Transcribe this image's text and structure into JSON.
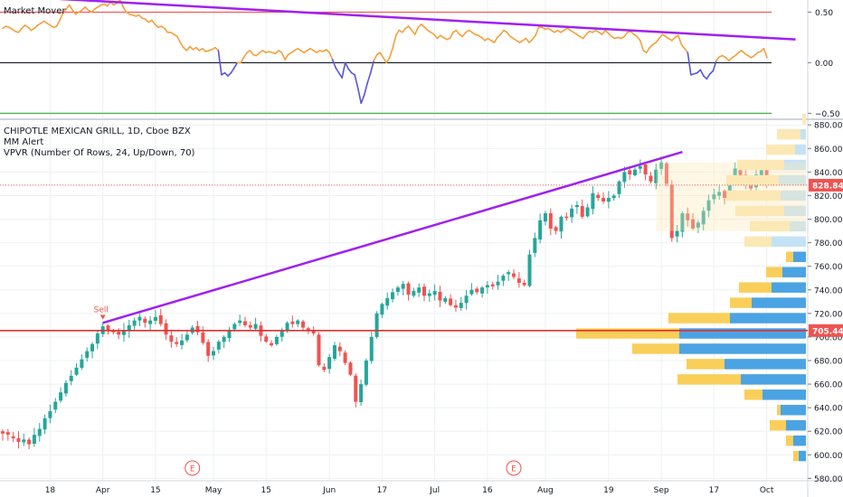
{
  "chart_data": [
    {
      "type": "line",
      "title": "Market Mover",
      "ylim": [
        -0.55,
        0.62
      ],
      "yticks": [
        0.5,
        0.0,
        -0.5
      ],
      "ytick_labels": [
        "0.50",
        "0.00",
        "−0.50"
      ],
      "reference_lines": [
        {
          "value": 0.5,
          "color": "#ef5350"
        },
        {
          "value": 0.0,
          "color": "#131722"
        },
        {
          "value": -0.5,
          "color": "#4caf50"
        }
      ],
      "series": [
        {
          "x_index_start": 0,
          "values": [
            0.34,
            0.36,
            0.35,
            0.33,
            0.31,
            0.3,
            0.34,
            0.37,
            0.35,
            0.32,
            0.34,
            0.37,
            0.39,
            0.41,
            0.39,
            0.37,
            0.35,
            0.36,
            0.42,
            0.49,
            0.53,
            0.57,
            0.52,
            0.48,
            0.5,
            0.52,
            0.55,
            0.52,
            0.5,
            0.53,
            0.55,
            0.57,
            0.58,
            0.56,
            0.6,
            0.57,
            0.59,
            0.62,
            0.55,
            0.5,
            0.48,
            0.47,
            0.46,
            0.47,
            0.44,
            0.43,
            0.4,
            0.42,
            0.38,
            0.35,
            0.36,
            0.34,
            0.3,
            0.3,
            0.28,
            0.26,
            0.2,
            0.15,
            0.12,
            0.16,
            0.13,
            0.15,
            0.12,
            0.14,
            0.11,
            0.12,
            0.13,
            0.15,
            0.12,
            -0.12,
            -0.1,
            -0.13,
            -0.1,
            -0.05,
            0.0,
            0.0,
            0.05,
            0.1,
            0.12,
            0.08,
            0.07,
            0.1,
            0.12,
            0.1,
            0.11,
            0.1,
            0.09,
            0.12,
            0.1,
            0.03,
            0.08,
            0.1,
            0.12,
            0.14,
            0.12,
            0.1,
            0.12,
            0.14,
            0.12,
            0.1,
            0.12,
            0.11,
            0.13,
            0.1,
            0.03,
            -0.05,
            -0.1,
            -0.15,
            0.0,
            -0.06,
            -0.1,
            -0.12,
            -0.25,
            -0.4,
            -0.32,
            -0.2,
            -0.1,
            0.02,
            0.08,
            0.1,
            0.05,
            0.0,
            0.05,
            0.15,
            0.27,
            0.32,
            0.3,
            0.34,
            0.36,
            0.32,
            0.28,
            0.35,
            0.38,
            0.35,
            0.32,
            0.3,
            0.28,
            0.24,
            0.27,
            0.25,
            0.23,
            0.24,
            0.3,
            0.32,
            0.28,
            0.26,
            0.3,
            0.32,
            0.3,
            0.28,
            0.27,
            0.25,
            0.22,
            0.24,
            0.22,
            0.2,
            0.25,
            0.28,
            0.32,
            0.3,
            0.26,
            0.24,
            0.22,
            0.2,
            0.22,
            0.24,
            0.2,
            0.23,
            0.27,
            0.35,
            0.35,
            0.33,
            0.34,
            0.32,
            0.3,
            0.32,
            0.3,
            0.32,
            0.34,
            0.32,
            0.3,
            0.28,
            0.26,
            0.24,
            0.28,
            0.31,
            0.3,
            0.32,
            0.3,
            0.28,
            0.32,
            0.29,
            0.26,
            0.24,
            0.25,
            0.24,
            0.26,
            0.3,
            0.31,
            0.28,
            0.26,
            0.22,
            0.12,
            0.1,
            0.15,
            0.18,
            0.2,
            0.24,
            0.28,
            0.26,
            0.24,
            0.22,
            0.25,
            0.27,
            0.18,
            0.14,
            0.1,
            -0.12,
            -0.11,
            -0.1,
            -0.07,
            -0.13,
            -0.16,
            -0.11,
            -0.08,
            0.02,
            0.06,
            0.07,
            0.05,
            0.02,
            0.05,
            0.07,
            0.1,
            0.12,
            0.09,
            0.07,
            0.05,
            0.07,
            0.1,
            0.11,
            0.14,
            0.05
          ],
          "negative_color": "#5a55d8",
          "positive_color": "#f4a13d"
        }
      ],
      "annotations": [
        {
          "type": "trendline",
          "from": [
            18,
            0.63
          ],
          "to": [
            250,
            0.23
          ],
          "color": "#a020f0"
        }
      ]
    },
    {
      "type": "candlestick",
      "title": "CHIPOTLE MEXICAN GRILL, 1D, Cboe BZX",
      "legend_lines": [
        "CHIPOTLE MEXICAN GRILL, 1D, Cboe BZX",
        "MM Alert",
        "VPVR (Number Of Rows, 24, Up/Down, 70)"
      ],
      "ylim": [
        578,
        884
      ],
      "yticks": [
        580,
        600,
        620,
        640,
        660,
        680,
        700,
        720,
        740,
        760,
        780,
        800,
        820,
        840,
        860,
        880
      ],
      "ytick_labels": [
        "580.00",
        "600.00",
        "620.00",
        "640.00",
        "660.00",
        "680.00",
        "700.00",
        "720.00",
        "740.00",
        "760.00",
        "780.00",
        "800.00",
        "820.00",
        "840.00",
        "860.00",
        "880.00"
      ],
      "xticks": [
        {
          "label": "18",
          "index": 9
        },
        {
          "label": "Apr",
          "index": 19
        },
        {
          "label": "15",
          "index": 29
        },
        {
          "label": "May",
          "index": 40
        },
        {
          "label": "15",
          "index": 50
        },
        {
          "label": "Jun",
          "index": 62
        },
        {
          "label": "17",
          "index": 72
        },
        {
          "label": "Jul",
          "index": 82
        },
        {
          "label": "16",
          "index": 92
        },
        {
          "label": "Aug",
          "index": 103
        },
        {
          "label": "19",
          "index": 115
        },
        {
          "label": "Sep",
          "index": 125
        },
        {
          "label": "17",
          "index": 135
        },
        {
          "label": "Oct",
          "index": 145
        }
      ],
      "price_labels": [
        {
          "value": 828.84,
          "text": "828.84",
          "color": "#ef5350"
        },
        {
          "value": 705.44,
          "text": "705.44",
          "color": "#ef5350"
        }
      ],
      "horizontal_lines": [
        {
          "value": 705.44,
          "color": "#e03030",
          "style": "solid"
        },
        {
          "value": 828.84,
          "color": "#ef5350",
          "style": "dotted"
        }
      ],
      "markers": [
        {
          "type": "sell",
          "text": "Sell",
          "index": 19,
          "price": 718
        },
        {
          "type": "earnings",
          "text": "E",
          "index": 36
        },
        {
          "type": "earnings",
          "text": "E",
          "index": 97
        }
      ],
      "trendline": {
        "from": [
          19,
          712
        ],
        "to": [
          129,
          857
        ],
        "color": "#a020f0"
      },
      "closes": [
        618,
        617,
        614,
        611,
        613,
        609,
        617,
        622,
        631,
        637,
        645,
        653,
        661,
        667,
        674,
        681,
        688,
        694,
        703,
        709,
        705,
        704,
        702,
        706,
        710,
        714,
        717,
        712,
        714,
        717,
        711,
        702,
        696,
        694,
        697,
        702,
        708,
        704,
        695,
        684,
        688,
        696,
        700,
        706,
        711,
        714,
        710,
        708,
        711,
        701,
        696,
        693,
        700,
        706,
        712,
        711,
        714,
        708,
        706,
        703,
        676,
        672,
        683,
        693,
        688,
        678,
        668,
        645,
        660,
        680,
        700,
        720,
        728,
        733,
        738,
        742,
        745,
        736,
        739,
        742,
        735,
        737,
        739,
        731,
        733,
        727,
        725,
        729,
        735,
        740,
        738,
        742,
        744,
        743,
        747,
        752,
        755,
        751,
        746,
        744,
        770,
        784,
        799,
        805,
        792,
        790,
        802,
        801,
        809,
        812,
        802,
        810,
        822,
        818,
        815,
        818,
        820,
        832,
        840,
        838,
        842,
        845,
        838,
        832,
        842,
        848,
        830,
        784,
        790,
        805,
        799,
        792,
        797,
        807,
        816,
        821,
        823,
        818,
        832,
        843,
        837,
        829,
        826,
        838,
        845,
        828.84
      ],
      "volume_profile": [
        {
          "price": 885,
          "up": 4,
          "down": 0
        },
        {
          "price": 872,
          "up": 26,
          "down": 6
        },
        {
          "price": 859,
          "up": 32,
          "down": 12
        },
        {
          "price": 846,
          "up": 52,
          "down": 24
        },
        {
          "price": 833,
          "up": 58,
          "down": 30
        },
        {
          "price": 820,
          "up": 60,
          "down": 28
        },
        {
          "price": 807,
          "up": 54,
          "down": 24
        },
        {
          "price": 794,
          "up": 44,
          "down": 18
        },
        {
          "price": 781,
          "up": 30,
          "down": 38
        },
        {
          "price": 768,
          "up": 8,
          "down": 14
        },
        {
          "price": 755,
          "up": 18,
          "down": 26
        },
        {
          "price": 742,
          "up": 36,
          "down": 38
        },
        {
          "price": 729,
          "up": 24,
          "down": 60
        },
        {
          "price": 716,
          "up": 68,
          "down": 84
        },
        {
          "price": 703,
          "up": 114,
          "down": 140
        },
        {
          "price": 690,
          "up": 52,
          "down": 140
        },
        {
          "price": 677,
          "up": 42,
          "down": 90
        },
        {
          "price": 664,
          "up": 70,
          "down": 72
        },
        {
          "price": 651,
          "up": 20,
          "down": 48
        },
        {
          "price": 638,
          "up": 4,
          "down": 28
        },
        {
          "price": 625,
          "up": 18,
          "down": 22
        },
        {
          "price": 612,
          "up": 8,
          "down": 14
        },
        {
          "price": 599,
          "up": 6,
          "down": 8
        }
      ],
      "colors": {
        "up": "#26a69a",
        "down": "#ef5350",
        "vp_up": "#f9cf5a",
        "vp_down": "#4ba3e3",
        "vp_up_light": "#fbe8b5",
        "vp_down_light": "#c4e2f6"
      }
    }
  ]
}
